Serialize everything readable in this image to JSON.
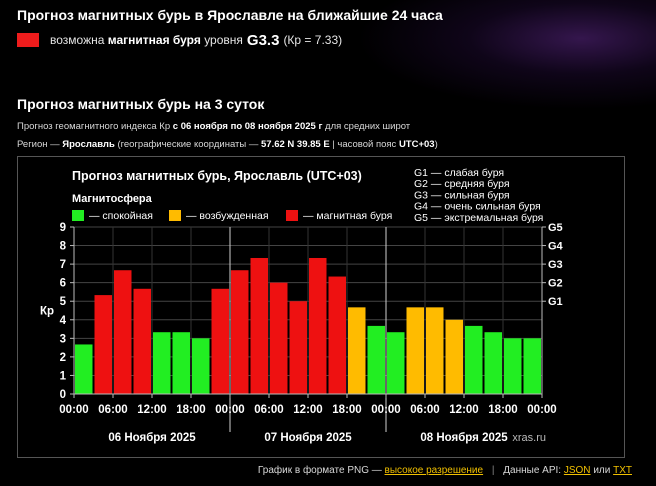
{
  "header": {
    "title": "Прогноз магнитных бурь в Ярославле на ближайшие 24 часа",
    "current_color": "#ee1c1c",
    "current_prefix": "возможна",
    "current_bold": "магнитная буря",
    "current_word": "уровня",
    "current_level": "G3.3",
    "current_kp": "(Кр = 7.33)"
  },
  "section": {
    "title": "Прогноз магнитных бурь на 3 суток",
    "line1_a": "Прогноз геомагнитного индекса Кр",
    "line1_b": "с 06 ноября по 08 ноября 2025 г",
    "line1_c": "для средних широт",
    "line2_a": "Регион —",
    "line2_b": "Ярославль",
    "line2_c": "(географические координаты —",
    "line2_d": "57.62 N 39.85 E",
    "line2_e": "| часовой пояс",
    "line2_f": "UTC+03",
    "line2_g": ")"
  },
  "chart_data": {
    "type": "bar",
    "title": "Прогноз магнитных бурь, Ярославль (UTC+03)",
    "ylabel": "Кр",
    "ylim": [
      0,
      9
    ],
    "yticks": [
      "0",
      "1",
      "2",
      "3",
      "4",
      "5",
      "6",
      "7",
      "8",
      "9"
    ],
    "right_ticks": [
      {
        "kp": 5,
        "label": "G1"
      },
      {
        "kp": 6,
        "label": "G2"
      },
      {
        "kp": 7,
        "label": "G3"
      },
      {
        "kp": 8,
        "label": "G4"
      },
      {
        "kp": 9,
        "label": "G5"
      }
    ],
    "legend_title": "Магнитосфера",
    "legend": [
      {
        "label": "— спокойная",
        "color": "#22ee22"
      },
      {
        "label": "— возбужденная",
        "color": "#ffbb00"
      },
      {
        "label": "— магнитная буря",
        "color": "#ee1111"
      }
    ],
    "g_legend": [
      "G1 — слабая буря",
      "G2 — средняя буря",
      "G3 — сильная буря",
      "G4 — очень сильная буря",
      "G5 — экстремальная буря"
    ],
    "x_tick_labels": [
      "00:00",
      "06:00",
      "12:00",
      "18:00",
      "00:00",
      "06:00",
      "12:00",
      "18:00",
      "00:00",
      "06:00",
      "12:00",
      "18:00",
      "00:00"
    ],
    "days": [
      "06 Ноября 2025",
      "07 Ноября 2025",
      "08 Ноября 2025"
    ],
    "values": [
      2.67,
      5.33,
      6.67,
      5.67,
      3.33,
      3.33,
      3.0,
      5.67,
      6.67,
      7.33,
      6.0,
      5.0,
      7.33,
      6.33,
      4.67,
      3.67,
      3.33,
      4.67,
      4.67,
      4.0,
      3.67,
      3.33,
      3.0,
      3.0
    ],
    "colors": [
      "#22ee22",
      "#ee1111",
      "#ee1111",
      "#ee1111",
      "#22ee22",
      "#22ee22",
      "#22ee22",
      "#ee1111",
      "#ee1111",
      "#ee1111",
      "#ee1111",
      "#ee1111",
      "#ee1111",
      "#ee1111",
      "#ffbb00",
      "#22ee22",
      "#22ee22",
      "#ffbb00",
      "#ffbb00",
      "#ffbb00",
      "#22ee22",
      "#22ee22",
      "#22ee22",
      "#22ee22"
    ],
    "watermark": "xras.ru",
    "grid": true
  },
  "footer": {
    "text1": "График в формате PNG —",
    "link_hd": "высокое разрешение",
    "separator": "|",
    "text2": "Данные API:",
    "link_json": "JSON",
    "or_word": "или",
    "link_txt": "TXT"
  }
}
